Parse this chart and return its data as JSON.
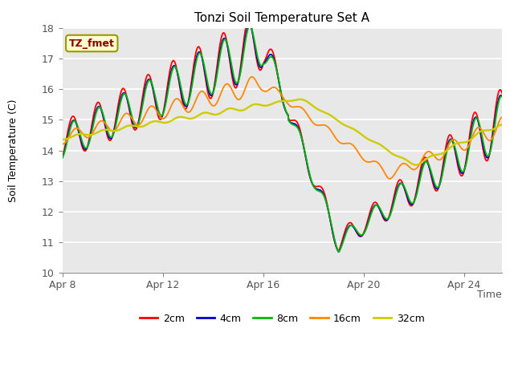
{
  "title": "Tonzi Soil Temperature Set A",
  "xlabel": "Time",
  "ylabel": "Soil Temperature (C)",
  "ylim": [
    10.0,
    18.0
  ],
  "yticks": [
    10.0,
    11.0,
    12.0,
    13.0,
    14.0,
    15.0,
    16.0,
    17.0,
    18.0
  ],
  "xtick_labels": [
    "Apr 8",
    "Apr 12",
    "Apr 16",
    "Apr 20",
    "Apr 24"
  ],
  "xtick_positions": [
    0,
    4,
    8,
    12,
    16
  ],
  "xlim": [
    0,
    17.5
  ],
  "background_color": "#e8e8e8",
  "plot_bg_color": "#e8e8e8",
  "legend_label": "TZ_fmet",
  "series_colors": {
    "2cm": "#ff0000",
    "4cm": "#0000cc",
    "8cm": "#00bb00",
    "16cm": "#ff8800",
    "32cm": "#cccc00"
  }
}
